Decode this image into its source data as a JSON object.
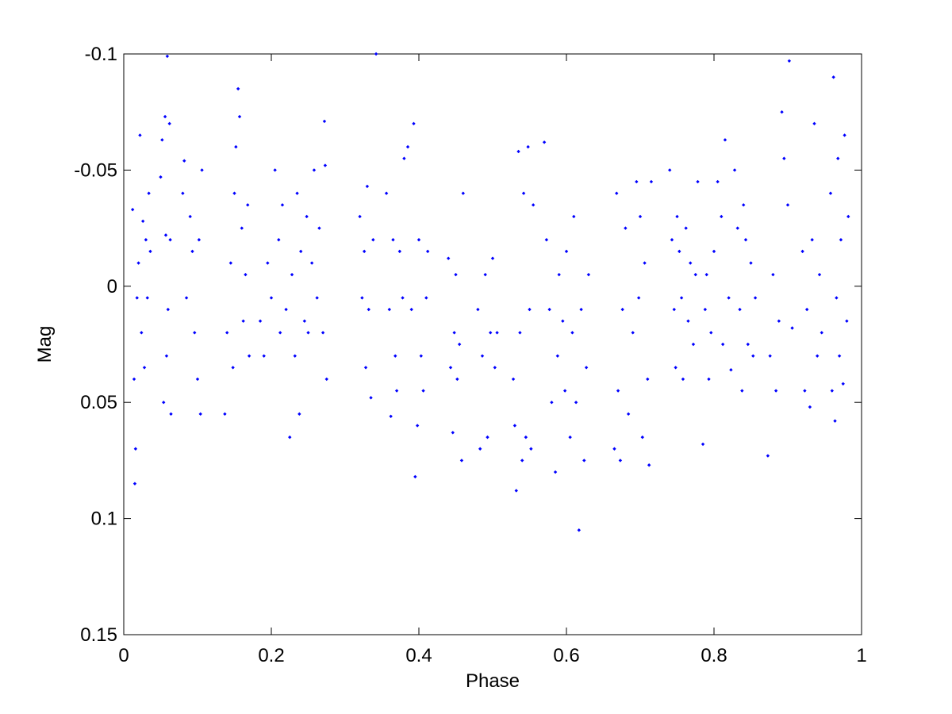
{
  "chart_data": {
    "type": "scatter",
    "x_label": "Phase",
    "y_label": "Mag",
    "xlim": [
      0,
      1
    ],
    "xticks": [
      0,
      0.2,
      0.4,
      0.6,
      0.8,
      1
    ],
    "ylim": [
      -0.1,
      0.15
    ],
    "yticks": [
      -0.1,
      -0.05,
      0,
      0.05,
      0.1,
      0.15
    ],
    "y_reversed": true,
    "grid": false,
    "color": "#0000ff",
    "x": [
      0.012,
      0.014,
      0.015,
      0.016,
      0.018,
      0.02,
      0.022,
      0.024,
      0.026,
      0.028,
      0.03,
      0.032,
      0.034,
      0.036,
      0.05,
      0.052,
      0.054,
      0.056,
      0.057,
      0.058,
      0.059,
      0.06,
      0.062,
      0.063,
      0.064,
      0.08,
      0.082,
      0.085,
      0.09,
      0.093,
      0.096,
      0.1,
      0.102,
      0.104,
      0.106,
      0.137,
      0.14,
      0.145,
      0.148,
      0.15,
      0.152,
      0.155,
      0.157,
      0.16,
      0.162,
      0.165,
      0.168,
      0.17,
      0.185,
      0.19,
      0.195,
      0.2,
      0.205,
      0.21,
      0.212,
      0.215,
      0.22,
      0.225,
      0.228,
      0.232,
      0.235,
      0.238,
      0.24,
      0.245,
      0.248,
      0.25,
      0.255,
      0.258,
      0.262,
      0.265,
      0.27,
      0.272,
      0.275,
      0.273,
      0.32,
      0.323,
      0.326,
      0.328,
      0.33,
      0.332,
      0.335,
      0.338,
      0.342,
      0.356,
      0.36,
      0.362,
      0.365,
      0.368,
      0.37,
      0.374,
      0.378,
      0.38,
      0.385,
      0.39,
      0.393,
      0.395,
      0.398,
      0.4,
      0.403,
      0.406,
      0.41,
      0.412,
      0.44,
      0.443,
      0.446,
      0.448,
      0.45,
      0.452,
      0.455,
      0.458,
      0.46,
      0.48,
      0.483,
      0.486,
      0.49,
      0.493,
      0.497,
      0.5,
      0.503,
      0.506,
      0.528,
      0.53,
      0.532,
      0.535,
      0.537,
      0.54,
      0.542,
      0.545,
      0.548,
      0.55,
      0.552,
      0.555,
      0.57,
      0.573,
      0.577,
      0.58,
      0.585,
      0.588,
      0.59,
      0.595,
      0.598,
      0.6,
      0.605,
      0.608,
      0.61,
      0.613,
      0.617,
      0.62,
      0.624,
      0.627,
      0.63,
      0.665,
      0.668,
      0.67,
      0.673,
      0.676,
      0.68,
      0.684,
      0.69,
      0.695,
      0.698,
      0.7,
      0.703,
      0.706,
      0.71,
      0.712,
      0.715,
      0.74,
      0.743,
      0.746,
      0.748,
      0.75,
      0.753,
      0.756,
      0.758,
      0.762,
      0.765,
      0.768,
      0.772,
      0.775,
      0.778,
      0.785,
      0.788,
      0.79,
      0.793,
      0.796,
      0.8,
      0.805,
      0.81,
      0.812,
      0.815,
      0.82,
      0.823,
      0.828,
      0.832,
      0.835,
      0.838,
      0.84,
      0.843,
      0.846,
      0.85,
      0.853,
      0.856,
      0.873,
      0.876,
      0.88,
      0.884,
      0.888,
      0.892,
      0.895,
      0.9,
      0.902,
      0.906,
      0.92,
      0.923,
      0.926,
      0.93,
      0.933,
      0.936,
      0.94,
      0.943,
      0.946,
      0.958,
      0.96,
      0.962,
      0.964,
      0.966,
      0.968,
      0.97,
      0.972,
      0.975,
      0.977,
      0.98,
      0.982
    ],
    "values": [
      -0.033,
      0.04,
      0.085,
      0.07,
      0.005,
      -0.01,
      -0.065,
      0.02,
      -0.028,
      0.035,
      -0.02,
      0.005,
      -0.04,
      -0.015,
      -0.047,
      -0.063,
      0.05,
      -0.073,
      -0.022,
      0.03,
      -0.099,
      0.01,
      -0.07,
      -0.02,
      0.055,
      -0.04,
      -0.054,
      0.005,
      -0.03,
      -0.015,
      0.02,
      0.04,
      -0.02,
      0.055,
      -0.05,
      0.055,
      0.02,
      -0.01,
      0.035,
      -0.04,
      -0.06,
      -0.085,
      -0.073,
      -0.025,
      0.015,
      -0.005,
      -0.035,
      0.03,
      0.015,
      0.03,
      -0.01,
      0.005,
      -0.05,
      -0.02,
      0.02,
      -0.035,
      0.01,
      0.065,
      -0.005,
      0.03,
      -0.04,
      0.055,
      -0.015,
      0.015,
      -0.03,
      0.02,
      -0.01,
      -0.05,
      0.005,
      -0.025,
      0.02,
      -0.071,
      0.04,
      -0.052,
      -0.03,
      0.005,
      -0.015,
      0.035,
      -0.043,
      0.01,
      0.048,
      -0.02,
      -0.1,
      -0.04,
      0.01,
      0.056,
      -0.02,
      0.03,
      0.045,
      -0.015,
      0.005,
      -0.055,
      -0.06,
      0.01,
      -0.07,
      0.082,
      0.06,
      -0.02,
      0.03,
      0.045,
      0.005,
      -0.015,
      -0.012,
      0.035,
      0.063,
      0.02,
      -0.005,
      0.04,
      0.025,
      0.075,
      -0.04,
      0.01,
      0.07,
      0.03,
      -0.005,
      0.065,
      0.02,
      -0.012,
      0.035,
      0.02,
      0.04,
      0.06,
      0.088,
      -0.058,
      0.02,
      0.075,
      -0.04,
      0.065,
      -0.06,
      0.01,
      0.07,
      -0.035,
      -0.062,
      -0.02,
      0.01,
      0.05,
      0.08,
      0.03,
      -0.005,
      0.015,
      0.045,
      -0.015,
      0.065,
      0.02,
      -0.03,
      0.05,
      0.105,
      0.01,
      0.075,
      0.035,
      -0.005,
      0.07,
      -0.04,
      0.045,
      0.075,
      0.01,
      -0.025,
      0.055,
      0.02,
      -0.045,
      0.005,
      -0.03,
      0.065,
      -0.01,
      0.04,
      0.077,
      -0.045,
      -0.05,
      -0.02,
      0.01,
      0.035,
      -0.03,
      -0.015,
      0.005,
      0.04,
      -0.025,
      0.015,
      -0.01,
      0.025,
      -0.005,
      -0.045,
      0.068,
      0.01,
      -0.005,
      0.04,
      0.02,
      -0.015,
      -0.045,
      -0.03,
      0.025,
      -0.063,
      0.005,
      0.036,
      -0.05,
      -0.025,
      0.01,
      0.045,
      -0.035,
      -0.02,
      0.025,
      -0.01,
      0.03,
      0.005,
      0.073,
      0.03,
      -0.005,
      0.045,
      0.015,
      -0.075,
      -0.055,
      -0.035,
      -0.097,
      0.018,
      -0.015,
      0.045,
      0.01,
      0.052,
      -0.02,
      -0.07,
      0.03,
      -0.005,
      0.02,
      -0.04,
      0.045,
      -0.09,
      0.058,
      0.005,
      -0.055,
      0.03,
      -0.02,
      0.042,
      -0.065,
      0.015,
      -0.03
    ]
  }
}
